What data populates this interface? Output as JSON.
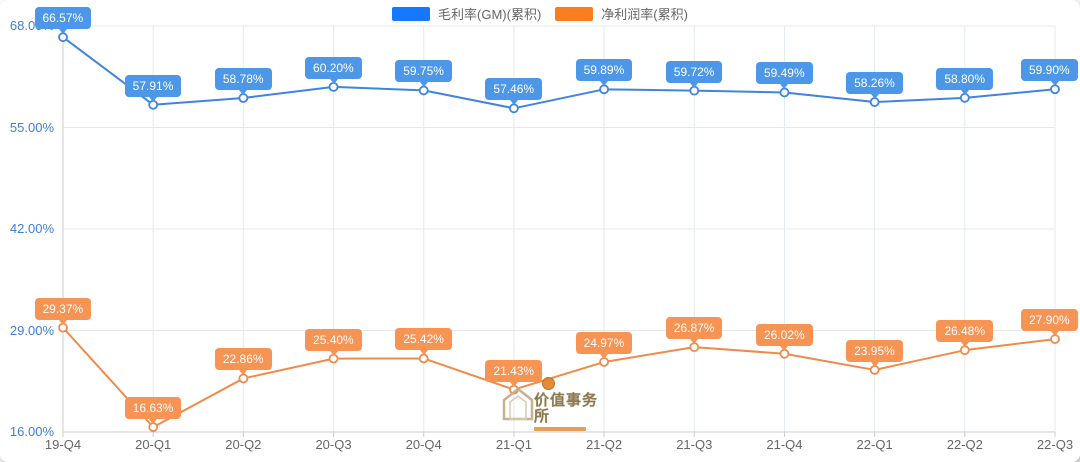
{
  "legend": {
    "items": [
      {
        "label": "毛利率(GM)(累积)",
        "color": "#1677ff"
      },
      {
        "label": "净利润率(累积)",
        "color": "#fa7d1e"
      }
    ]
  },
  "watermark": {
    "text": "价值事务所"
  },
  "chart_data": {
    "type": "line",
    "title": "",
    "xlabel": "",
    "ylabel": "",
    "categories": [
      "19-Q4",
      "20-Q1",
      "20-Q2",
      "20-Q3",
      "20-Q4",
      "21-Q1",
      "21-Q2",
      "21-Q3",
      "21-Q4",
      "22-Q1",
      "22-Q2",
      "22-Q3"
    ],
    "series": [
      {
        "name": "毛利率(GM)(累积)",
        "values": [
          66.57,
          57.91,
          58.78,
          60.2,
          59.75,
          57.46,
          59.89,
          59.72,
          59.49,
          58.26,
          58.8,
          59.9
        ],
        "line_color": "#3f84dd",
        "label_bg": "#4c97e8"
      },
      {
        "name": "净利润率(累积)",
        "values": [
          29.37,
          16.63,
          22.86,
          25.4,
          25.42,
          21.43,
          24.97,
          26.87,
          26.02,
          23.95,
          26.48,
          27.9
        ],
        "line_color": "#ef8a49",
        "label_bg": "#f79353"
      }
    ],
    "ylim": [
      16,
      68
    ],
    "yticks": [
      16,
      29,
      42,
      55,
      68
    ],
    "ytick_labels": [
      "16.00%",
      "29.00%",
      "42.00%",
      "55.00%",
      "68.00%"
    ],
    "value_suffix": "%",
    "grid": true,
    "legend_position": "top",
    "colors": {
      "grid_h": "#e8e8e8",
      "grid_v": "#e3eaf3",
      "axis": "#cccccc",
      "y_label": "#3d7edb",
      "x_label": "#666666"
    }
  }
}
